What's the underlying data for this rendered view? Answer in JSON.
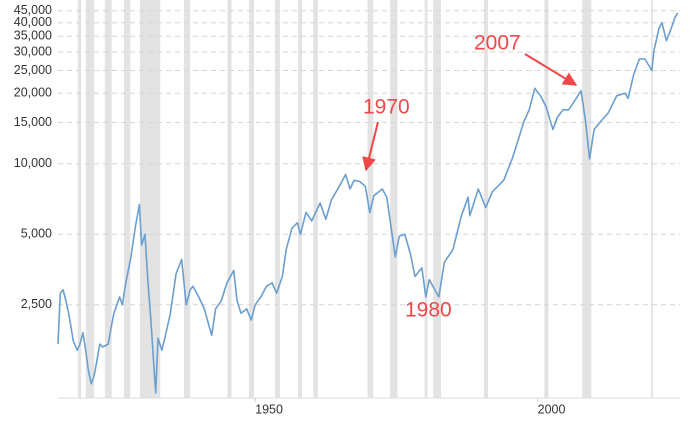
{
  "chart_data": {
    "type": "line",
    "log_scale": true,
    "grid": true,
    "xlim": [
      1915.1,
      2025.2
    ],
    "ylim": [
      1000,
      50000
    ],
    "xticks": [
      1950,
      2000
    ],
    "yticks": [
      {
        "value": 2500,
        "label": "2,500"
      },
      {
        "value": 5000,
        "label": "5,000"
      },
      {
        "value": 10000,
        "label": "10,000"
      },
      {
        "value": 15000,
        "label": "15,000"
      },
      {
        "value": 20000,
        "label": "20,000"
      },
      {
        "value": 25000,
        "label": "25,000"
      },
      {
        "value": 30000,
        "label": "30,000"
      },
      {
        "value": 35000,
        "label": "35,000"
      },
      {
        "value": 40000,
        "label": "40,000"
      },
      {
        "value": 45000,
        "label": "45,000"
      }
    ],
    "recessions": [
      [
        1918.6,
        1919.2
      ],
      [
        1920.0,
        1921.5
      ],
      [
        1923.4,
        1924.6
      ],
      [
        1926.8,
        1927.9
      ],
      [
        1929.6,
        1933.2
      ],
      [
        1937.4,
        1938.5
      ],
      [
        1945.1,
        1945.8
      ],
      [
        1948.9,
        1949.8
      ],
      [
        1953.5,
        1954.4
      ],
      [
        1957.6,
        1958.3
      ],
      [
        1960.3,
        1961.1
      ],
      [
        1969.9,
        1970.9
      ],
      [
        1973.9,
        1975.2
      ],
      [
        1980.0,
        1980.5
      ],
      [
        1981.5,
        1982.9
      ],
      [
        1990.5,
        1991.2
      ],
      [
        2001.2,
        2001.9
      ],
      [
        2007.9,
        2009.5
      ],
      [
        2020.1,
        2020.4
      ]
    ],
    "recession_color": "#e3e3e3",
    "annotations": [
      "1970",
      "2007",
      "1980"
    ],
    "series": [
      {
        "color": "#6a9fd0",
        "x": [
          1915.1,
          1915.5,
          1916,
          1916.5,
          1917,
          1917.8,
          1918.5,
          1919,
          1919.5,
          1920,
          1920.5,
          1921,
          1921.5,
          1922,
          1922.5,
          1923,
          1924,
          1924.5,
          1925,
          1926,
          1926.5,
          1927,
          1928,
          1928.8,
          1929.5,
          1929.9,
          1930.5,
          1931,
          1931.5,
          1932.4,
          1932.8,
          1933.5,
          1934,
          1935,
          1936,
          1937,
          1937.8,
          1938.5,
          1939,
          1940,
          1941,
          1942.3,
          1943,
          1944,
          1945,
          1946.2,
          1946.8,
          1947.5,
          1948.5,
          1949.3,
          1950,
          1951,
          1952,
          1953,
          1953.8,
          1954.8,
          1955.5,
          1956.5,
          1957.5,
          1958,
          1959,
          1960,
          1961.5,
          1962.5,
          1963.5,
          1965,
          1966,
          1966.8,
          1967.5,
          1968.5,
          1969.5,
          1970.3,
          1971,
          1972.5,
          1973.3,
          1974.8,
          1975.5,
          1976.5,
          1977.5,
          1978.3,
          1979.5,
          1980.2,
          1980.8,
          1982.5,
          1983.5,
          1985,
          1986.5,
          1987.7,
          1988,
          1989.5,
          1990.8,
          1992,
          1994,
          1995.5,
          1996.5,
          1997.5,
          1998.5,
          1999.5,
          2000.5,
          2001.5,
          2002.7,
          2003.5,
          2004.5,
          2005.5,
          2006.5,
          2007.7,
          2008.5,
          2009.2,
          2010,
          2011,
          2012.5,
          2014,
          2015.5,
          2016,
          2017,
          2018,
          2019,
          2020.2,
          2020.6,
          2021.5,
          2022,
          2022.8,
          2023.5,
          2024.3,
          2024.8
        ],
        "values": [
          1700,
          2800,
          2900,
          2600,
          2300,
          1750,
          1600,
          1700,
          1900,
          1600,
          1300,
          1150,
          1250,
          1450,
          1700,
          1650,
          1700,
          2000,
          2300,
          2700,
          2500,
          3000,
          4000,
          5400,
          6700,
          4500,
          5000,
          3200,
          2200,
          1050,
          1800,
          1600,
          1800,
          2300,
          3400,
          3900,
          2500,
          2900,
          3000,
          2700,
          2400,
          1850,
          2400,
          2600,
          3100,
          3500,
          2600,
          2300,
          2400,
          2150,
          2500,
          2700,
          3000,
          3100,
          2800,
          3300,
          4300,
          5300,
          5600,
          5000,
          6200,
          5700,
          6800,
          5800,
          7000,
          8100,
          9000,
          7800,
          8500,
          8400,
          8000,
          6200,
          7300,
          7800,
          7200,
          4000,
          4900,
          5000,
          4100,
          3300,
          3600,
          2700,
          3200,
          2700,
          3800,
          4300,
          6000,
          7200,
          6000,
          7800,
          6500,
          7600,
          8500,
          10500,
          12500,
          15000,
          17000,
          21000,
          19500,
          17500,
          14000,
          15800,
          17000,
          17000,
          18500,
          20500,
          15000,
          10500,
          14000,
          15000,
          16500,
          19500,
          20000,
          19000,
          24000,
          28000,
          28000,
          25000,
          30500,
          38000,
          40000,
          33500,
          37000,
          42000,
          44000
        ]
      }
    ]
  }
}
